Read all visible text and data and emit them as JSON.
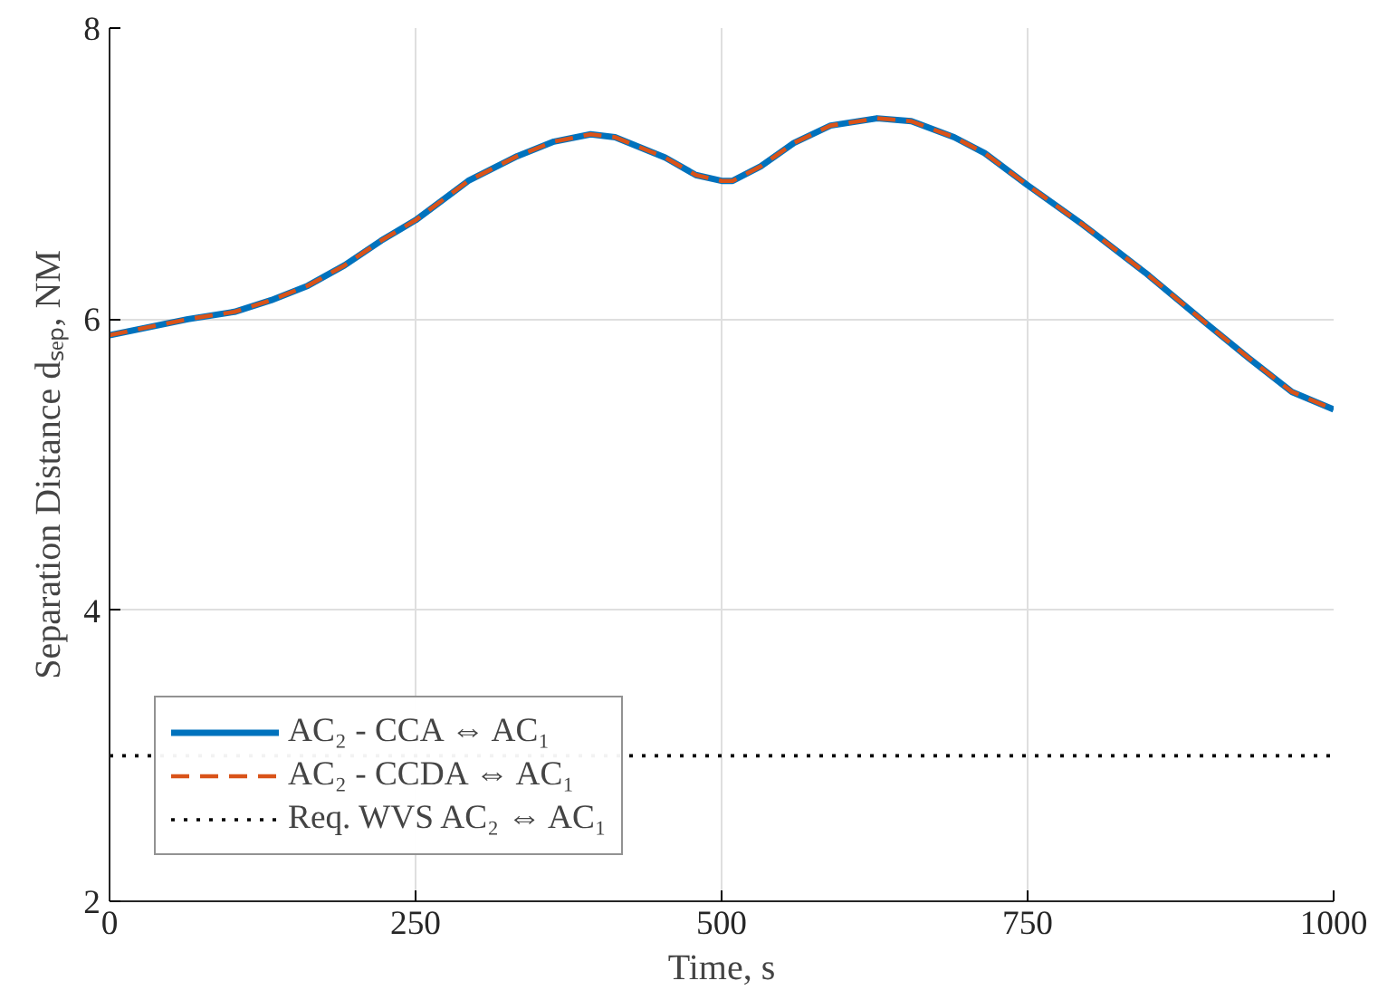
{
  "chart_data": {
    "type": "line",
    "xlabel": "Time, s",
    "ylabel": "Separation Distance dₛₑₚ, NM",
    "xlim": [
      0,
      1000
    ],
    "ylim": [
      2,
      8
    ],
    "xticks": [
      0,
      250,
      500,
      750,
      1000
    ],
    "yticks": [
      2,
      4,
      6,
      8
    ],
    "grid": true,
    "legend": "bottom left",
    "series": [
      {
        "name": "AC₂ - CCA ⇔ AC₁",
        "color": "#0072bd",
        "line_style": "solid",
        "x": [
          0,
          64,
          102,
          132,
          162,
          192,
          222,
          250,
          293,
          333,
          363,
          393,
          413,
          454,
          479,
          500,
          509,
          532,
          559,
          589,
          627,
          655,
          690,
          715,
          750,
          795,
          846,
          896,
          931,
          966,
          1000
        ],
        "values": [
          5.89,
          6.0,
          6.05,
          6.13,
          6.23,
          6.37,
          6.54,
          6.68,
          6.95,
          7.12,
          7.22,
          7.27,
          7.25,
          7.11,
          6.99,
          6.95,
          6.95,
          7.05,
          7.21,
          7.33,
          7.38,
          7.36,
          7.25,
          7.14,
          6.92,
          6.65,
          6.32,
          5.97,
          5.73,
          5.5,
          5.38
        ]
      },
      {
        "name": "AC₂ - CCDA ⇔ AC₁",
        "color": "#d95319",
        "line_style": "dashed",
        "x": [
          0,
          64,
          102,
          132,
          162,
          192,
          222,
          250,
          293,
          333,
          363,
          393,
          413,
          454,
          479,
          500,
          509,
          532,
          559,
          589,
          627,
          655,
          690,
          715,
          750,
          795,
          846,
          896,
          931,
          966,
          1000
        ],
        "values": [
          5.89,
          6.0,
          6.05,
          6.13,
          6.23,
          6.37,
          6.54,
          6.68,
          6.95,
          7.12,
          7.22,
          7.27,
          7.25,
          7.11,
          6.99,
          6.95,
          6.95,
          7.05,
          7.21,
          7.33,
          7.38,
          7.36,
          7.25,
          7.14,
          6.92,
          6.65,
          6.32,
          5.97,
          5.73,
          5.5,
          5.38
        ]
      },
      {
        "name": "Req. WVS AC₂ ⇔ AC₁",
        "color": "#000000",
        "line_style": "dotted",
        "x": [
          0,
          1000
        ],
        "values": [
          3,
          3
        ]
      }
    ]
  }
}
